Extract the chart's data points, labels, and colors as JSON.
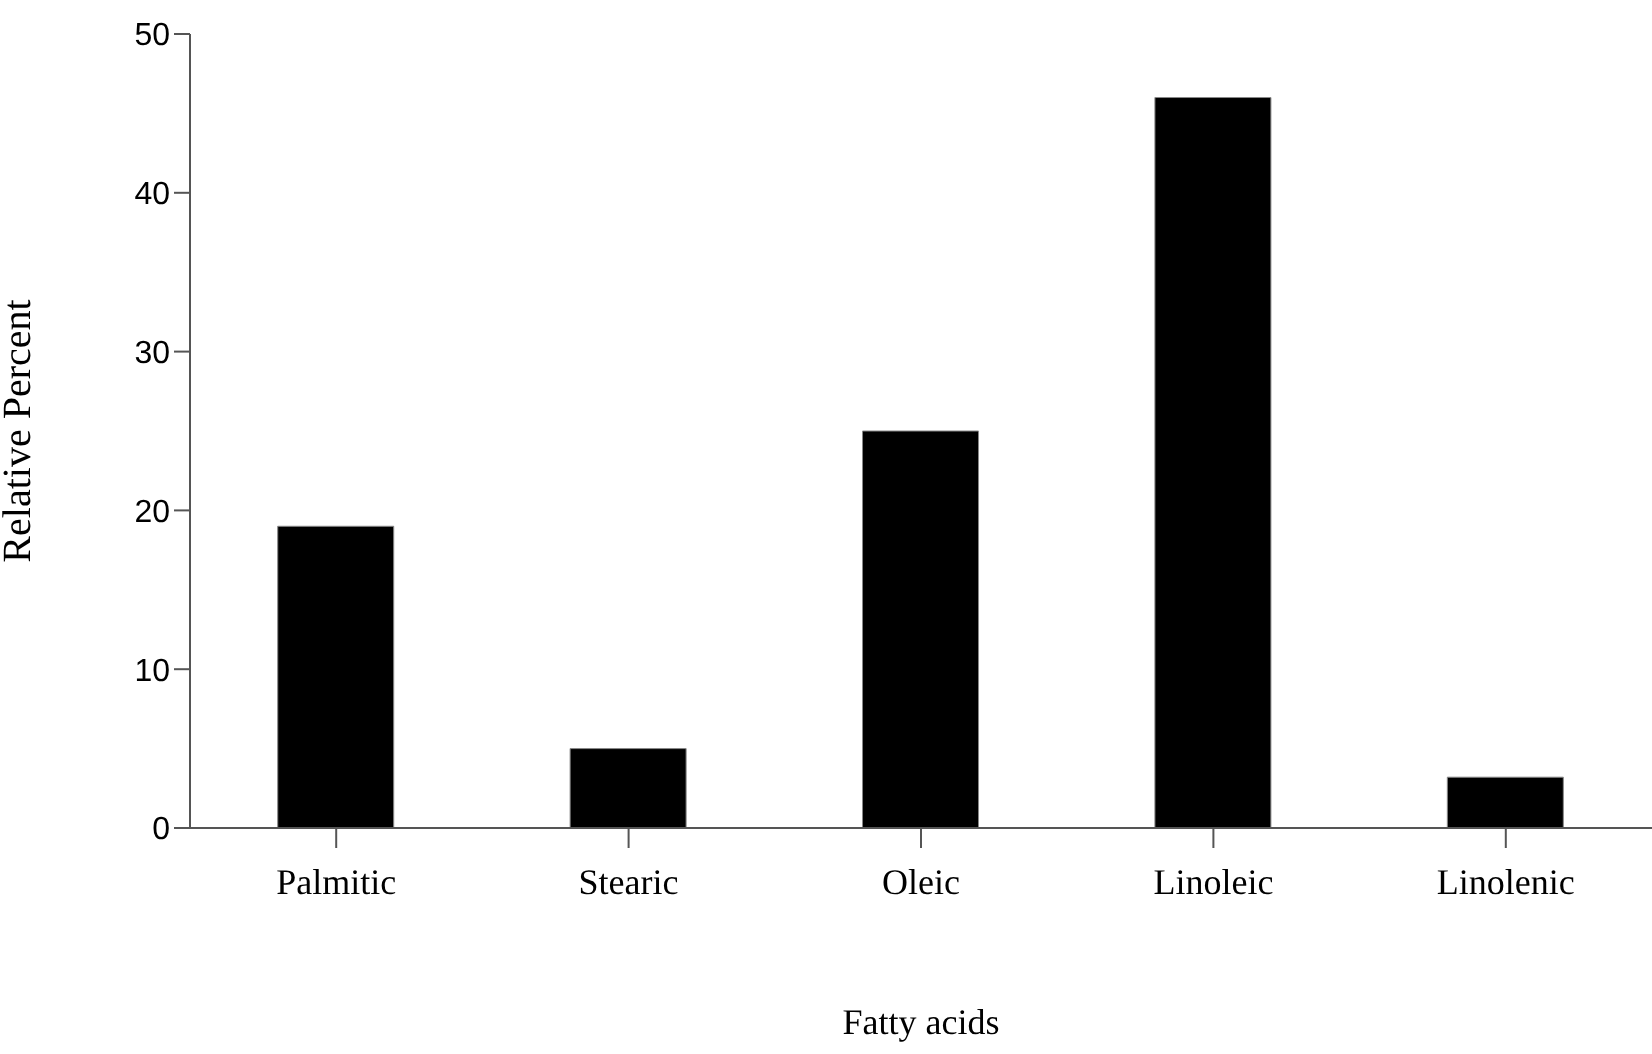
{
  "chart_data": {
    "type": "bar",
    "xlabel": "Fatty acids",
    "ylabel": "Relative Percent",
    "categories": [
      "Palmitic",
      "Stearic",
      "Oleic",
      "Linoleic",
      "Linolenic"
    ],
    "values": [
      19,
      5,
      25,
      46,
      3.2
    ],
    "color": "#000000",
    "ylim": [
      0,
      50
    ],
    "yticks": [
      0,
      10,
      20,
      30,
      40,
      50
    ],
    "grid": false
  }
}
